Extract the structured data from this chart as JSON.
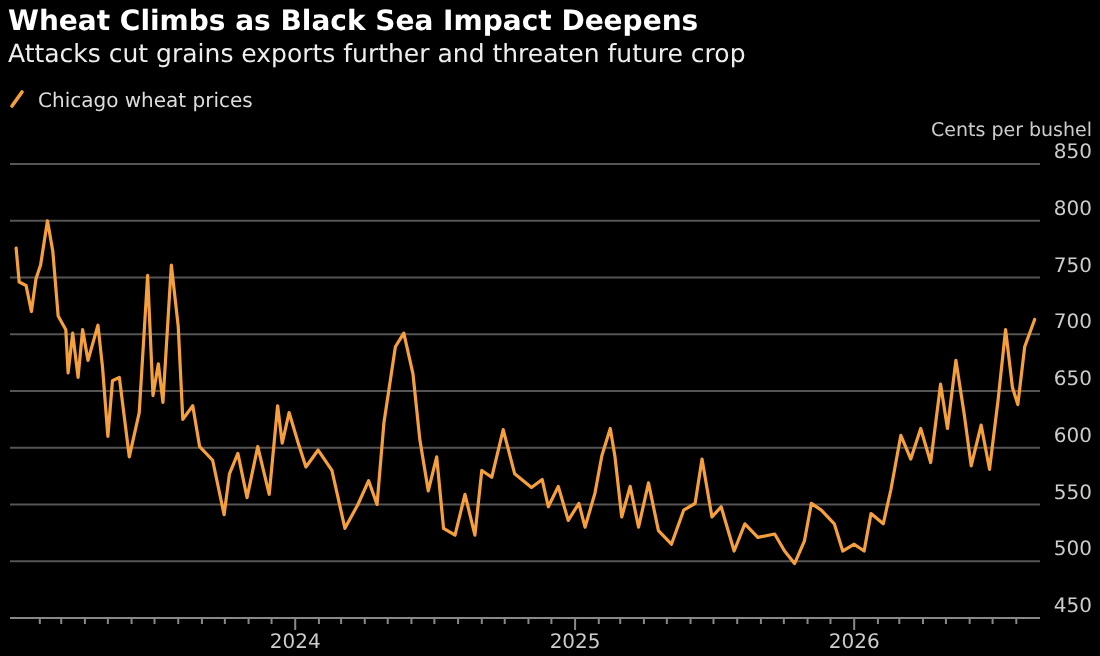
{
  "chart_data": {
    "type": "line",
    "title": "Wheat Climbs as Black Sea Impact Deepens",
    "subtitle": "Attacks cut grains exports further and threaten future crop",
    "ylabel": "Cents per bushel",
    "legend": "top left",
    "grid": "y",
    "line_style": "solid",
    "marker": "none",
    "xlim": [
      "2022-12-24",
      "2026-09-01"
    ],
    "ylim": [
      450,
      850
    ],
    "yticks": [
      450,
      500,
      550,
      600,
      650,
      700,
      750,
      800,
      850
    ],
    "xticks": [
      {
        "value": "2023-02-01",
        "label": null
      },
      {
        "value": "2023-03-01",
        "label": null
      },
      {
        "value": "2023-04-01",
        "label": null
      },
      {
        "value": "2023-05-01",
        "label": null
      },
      {
        "value": "2023-06-01",
        "label": null
      },
      {
        "value": "2023-07-01",
        "label": null
      },
      {
        "value": "2023-08-01",
        "label": null
      },
      {
        "value": "2023-09-01",
        "label": null
      },
      {
        "value": "2023-10-01",
        "label": null
      },
      {
        "value": "2023-11-01",
        "label": null
      },
      {
        "value": "2023-12-01",
        "label": null
      },
      {
        "value": "2024-01-01",
        "label": "2024"
      },
      {
        "value": "2024-02-01",
        "label": null
      },
      {
        "value": "2024-03-01",
        "label": null
      },
      {
        "value": "2024-04-01",
        "label": null
      },
      {
        "value": "2024-05-01",
        "label": null
      },
      {
        "value": "2024-06-01",
        "label": null
      },
      {
        "value": "2024-07-01",
        "label": null
      },
      {
        "value": "2024-08-01",
        "label": null
      },
      {
        "value": "2024-09-01",
        "label": null
      },
      {
        "value": "2024-10-01",
        "label": null
      },
      {
        "value": "2024-11-01",
        "label": null
      },
      {
        "value": "2024-12-01",
        "label": null
      },
      {
        "value": "2025-01-01",
        "label": "2025"
      },
      {
        "value": "2025-02-01",
        "label": null
      },
      {
        "value": "2025-03-01",
        "label": null
      },
      {
        "value": "2025-04-01",
        "label": null
      },
      {
        "value": "2025-05-01",
        "label": null
      },
      {
        "value": "2025-06-01",
        "label": null
      },
      {
        "value": "2025-07-01",
        "label": null
      },
      {
        "value": "2025-08-01",
        "label": null
      },
      {
        "value": "2025-09-01",
        "label": null
      },
      {
        "value": "2025-10-01",
        "label": null
      },
      {
        "value": "2025-11-01",
        "label": null
      },
      {
        "value": "2025-12-01",
        "label": null
      },
      {
        "value": "2026-01-01",
        "label": "2026"
      },
      {
        "value": "2026-02-01",
        "label": null
      },
      {
        "value": "2026-03-01",
        "label": null
      },
      {
        "value": "2026-04-01",
        "label": null
      },
      {
        "value": "2026-05-01",
        "label": null
      },
      {
        "value": "2026-06-01",
        "label": null
      },
      {
        "value": "2026-07-01",
        "label": null
      },
      {
        "value": "2026-08-01",
        "label": null
      }
    ],
    "series": [
      {
        "name": "Chicago wheat prices",
        "color": "#f5a03c",
        "x": [
          "2023-01-01",
          "2023-01-05",
          "2023-01-14",
          "2023-01-21",
          "2023-01-27",
          "2023-02-02",
          "2023-02-11",
          "2023-02-18",
          "2023-02-25",
          "2023-03-07",
          "2023-03-10",
          "2023-03-16",
          "2023-03-23",
          "2023-03-29",
          "2023-04-05",
          "2023-04-18",
          "2023-04-24",
          "2023-05-01",
          "2023-05-07",
          "2023-05-16",
          "2023-05-29",
          "2023-06-11",
          "2023-06-22",
          "2023-06-29",
          "2023-07-06",
          "2023-07-12",
          "2023-07-23",
          "2023-08-01",
          "2023-08-07",
          "2023-08-20",
          "2023-08-29",
          "2023-09-15",
          "2023-09-30",
          "2023-10-07",
          "2023-10-18",
          "2023-10-30",
          "2023-11-13",
          "2023-11-28",
          "2023-12-09",
          "2023-12-15",
          "2023-12-24",
          "2024-01-05",
          "2024-01-15",
          "2024-01-31",
          "2024-02-18",
          "2024-03-06",
          "2024-03-23",
          "2024-04-06",
          "2024-04-17",
          "2024-04-26",
          "2024-05-11",
          "2024-05-22",
          "2024-06-03",
          "2024-06-12",
          "2024-06-23",
          "2024-07-04",
          "2024-07-13",
          "2024-07-28",
          "2024-08-10",
          "2024-08-23",
          "2024-09-01",
          "2024-09-14",
          "2024-09-29",
          "2024-10-14",
          "2024-11-05",
          "2024-11-19",
          "2024-11-27",
          "2024-12-10",
          "2024-12-23",
          "2025-01-06",
          "2025-01-14",
          "2025-01-27",
          "2025-02-05",
          "2025-02-16",
          "2025-02-22",
          "2025-03-03",
          "2025-03-14",
          "2025-03-25",
          "2025-04-07",
          "2025-04-20",
          "2025-05-07",
          "2025-05-23",
          "2025-06-07",
          "2025-06-16",
          "2025-06-29",
          "2025-07-11",
          "2025-07-28",
          "2025-08-11",
          "2025-08-28",
          "2025-09-19",
          "2025-10-02",
          "2025-10-15",
          "2025-10-28",
          "2025-11-06",
          "2025-11-19",
          "2025-12-06",
          "2025-12-17",
          "2026-01-01",
          "2026-01-14",
          "2026-01-23",
          "2026-02-08",
          "2026-02-18",
          "2026-03-03",
          "2026-03-16",
          "2026-03-29",
          "2026-04-11",
          "2026-04-24",
          "2026-05-03",
          "2026-05-14",
          "2026-05-25",
          "2026-06-03",
          "2026-06-16",
          "2026-06-27",
          "2026-07-08",
          "2026-07-18",
          "2026-07-27",
          "2026-08-03",
          "2026-08-12",
          "2026-08-25"
        ],
        "values": [
          776,
          746,
          743,
          720,
          749,
          761,
          800,
          773,
          716,
          704,
          666,
          701,
          662,
          704,
          677,
          708,
          671,
          610,
          659,
          662,
          592,
          631,
          752,
          646,
          674,
          640,
          761,
          707,
          625,
          637,
          601,
          589,
          541,
          577,
          595,
          556,
          601,
          559,
          637,
          604,
          631,
          604,
          583,
          598,
          580,
          529,
          550,
          571,
          550,
          622,
          689,
          701,
          665,
          607,
          562,
          592,
          529,
          523,
          559,
          523,
          580,
          574,
          616,
          577,
          565,
          572,
          548,
          566,
          536,
          551,
          530,
          560,
          593,
          617,
          593,
          539,
          566,
          530,
          569,
          527,
          515,
          545,
          551,
          590,
          539,
          548,
          509,
          533,
          521,
          524,
          509,
          498,
          518,
          551,
          545,
          533,
          509,
          515,
          509,
          542,
          533,
          563,
          611,
          590,
          617,
          587,
          656,
          617,
          677,
          629,
          584,
          620,
          581,
          641,
          704,
          653,
          638,
          689,
          713
        ]
      }
    ]
  }
}
